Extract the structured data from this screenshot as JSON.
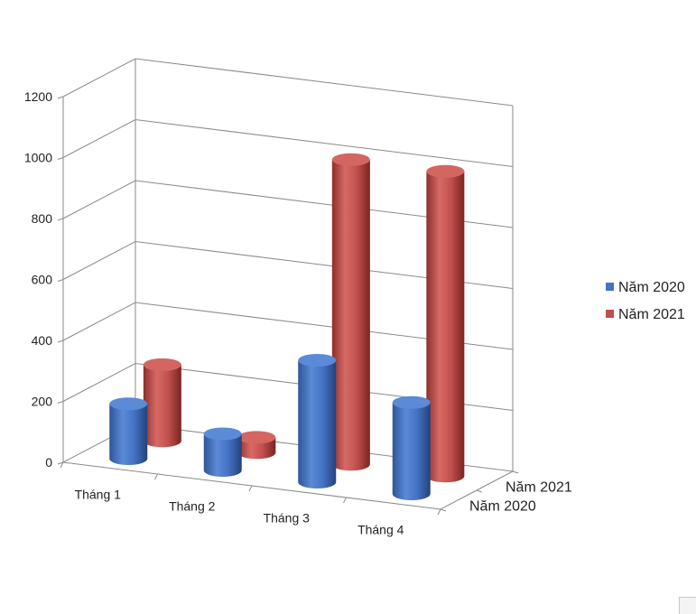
{
  "chart_data": {
    "type": "bar",
    "subtype": "3d-cylinder",
    "title": "",
    "xlabel": "",
    "ylabel": "",
    "ylim": [
      0,
      1200
    ],
    "yticks": [
      0,
      200,
      400,
      600,
      800,
      1000,
      1200
    ],
    "categories": [
      "Tháng 1",
      "Tháng 2",
      "Tháng 3",
      "Tháng 4"
    ],
    "series": [
      {
        "name": "Năm 2020",
        "color": "#4472c4",
        "values": [
          180,
          120,
          400,
          300
        ]
      },
      {
        "name": "Năm 2021",
        "color": "#c0504d",
        "values": [
          250,
          50,
          1000,
          1000
        ]
      }
    ],
    "depth_labels": [
      "Năm 2021",
      "Năm 2020"
    ],
    "grid": true,
    "legend": "right"
  }
}
